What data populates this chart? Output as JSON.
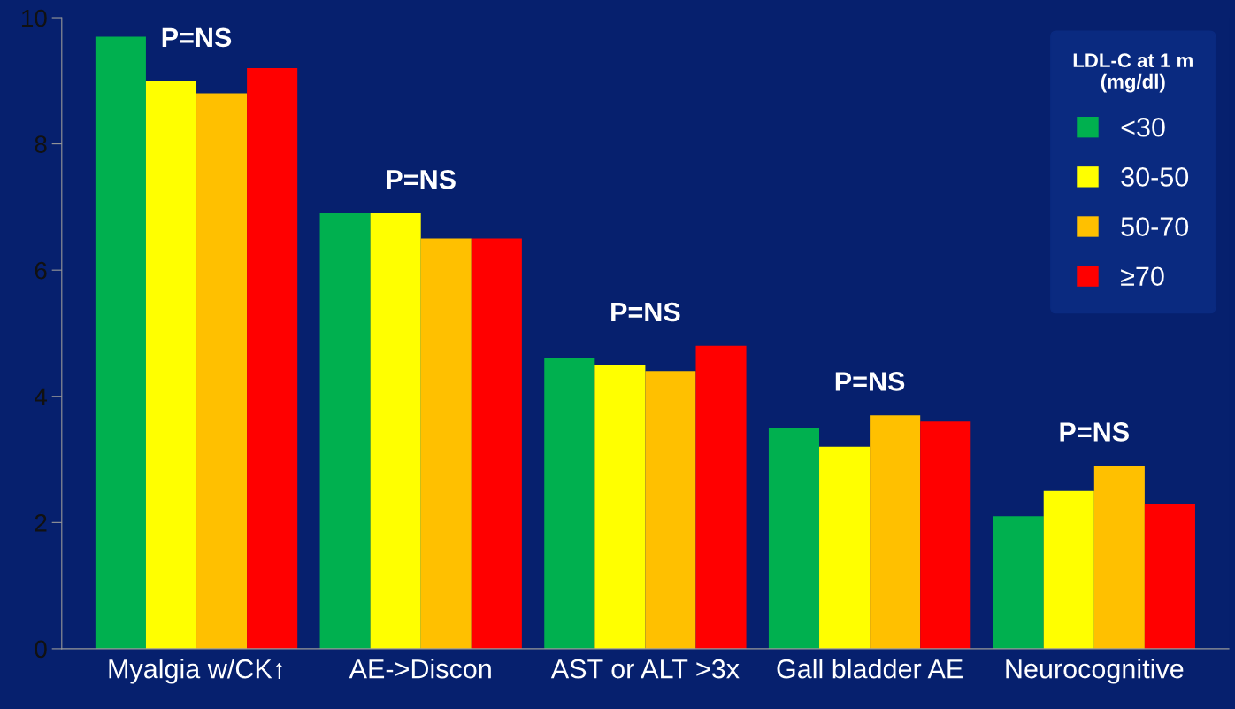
{
  "chart_data": {
    "type": "bar",
    "categories": [
      "Myalgia w/CK↑",
      "AE->Discon",
      "AST or ALT >3x",
      "Gall bladder AE",
      "Neurocognitive"
    ],
    "series": [
      {
        "name": "<30",
        "color": "#00b04f",
        "values": [
          9.7,
          6.9,
          4.6,
          3.5,
          2.1
        ]
      },
      {
        "name": "30-50",
        "color": "#ffff00",
        "values": [
          9.0,
          6.9,
          4.5,
          3.2,
          2.5
        ]
      },
      {
        "name": "50-70",
        "color": "#ffc000",
        "values": [
          8.8,
          6.5,
          4.4,
          3.7,
          2.9
        ]
      },
      {
        "name": "≥70",
        "color": "#ff0000",
        "values": [
          9.2,
          6.5,
          4.8,
          3.6,
          2.3
        ]
      }
    ],
    "legend_title": "LDL-C at 1 m\n(mg/dl)",
    "legend": "top right",
    "ylim": [
      0,
      10
    ],
    "yticks": [
      0,
      2,
      4,
      6,
      8,
      10
    ],
    "grid": false,
    "annotations": [
      "P=NS",
      "P=NS",
      "P=NS",
      "P=NS",
      "P=NS"
    ]
  }
}
